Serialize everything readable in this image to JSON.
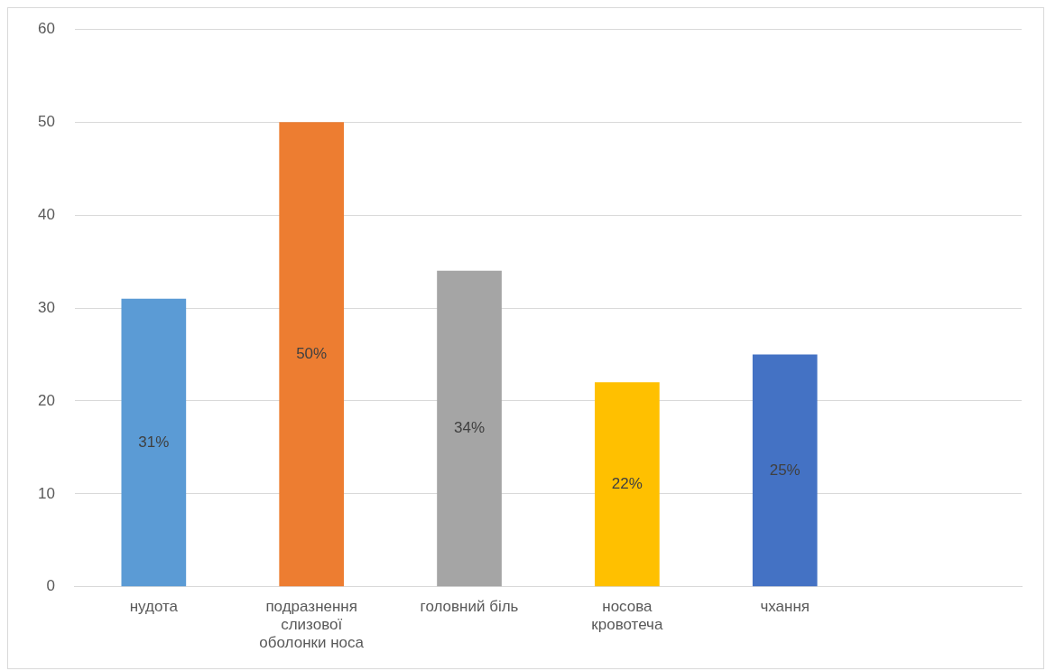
{
  "chart_data": {
    "type": "bar",
    "categories": [
      "нудота",
      "подразнення слизової оболонки носа",
      "головний біль",
      "носова кровотеча",
      "чхання",
      null
    ],
    "values": [
      31,
      50,
      34,
      22,
      25,
      null
    ],
    "colors": [
      "#5b9bd5",
      "#ed7d31",
      "#a5a5a5",
      "#ffc000",
      "#4472c4",
      null
    ],
    "value_labels": [
      "31%",
      "50%",
      "34%",
      "22%",
      "25%",
      null
    ],
    "ylim": [
      0,
      60
    ],
    "yticks": [
      0,
      10,
      20,
      30,
      40,
      50,
      60
    ],
    "grid": "y",
    "legend": false
  }
}
